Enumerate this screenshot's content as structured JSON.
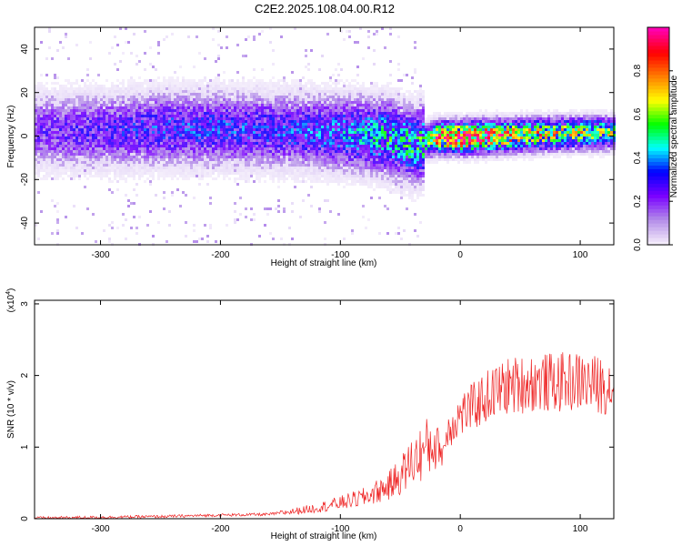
{
  "title": "C2E2.2025.108.04.00.R12",
  "chart_data": [
    {
      "type": "heatmap",
      "xlabel": "Height of straight line (km)",
      "ylabel": "Frequency (Hz)",
      "xlim": [
        -355,
        128
      ],
      "ylim": [
        -50,
        50
      ],
      "xticks": [
        -300,
        -200,
        -100,
        0,
        100
      ],
      "yticks": [
        -40,
        -20,
        0,
        20,
        40
      ],
      "colorbar": {
        "label": "Normalized spectral amplitude",
        "range": [
          0,
          1
        ],
        "ticks": [
          "0.0",
          "0.2",
          "0.4",
          "0.6",
          "0.8"
        ],
        "colors": [
          "#f4ecfb",
          "#b28be8",
          "#7a00ff",
          "#0000ff",
          "#00ffff",
          "#00ff00",
          "#ffff00",
          "#ff8000",
          "#ff0000",
          "#ff00b0"
        ]
      },
      "ridge": {
        "x": [
          -355,
          -300,
          -250,
          -200,
          -150,
          -100,
          -60,
          -40,
          -30,
          -20,
          0,
          50,
          100,
          128
        ],
        "center_hz": [
          3,
          3,
          4,
          4,
          3,
          2,
          0,
          -4,
          -2,
          0,
          0,
          1,
          2,
          2
        ],
        "amplitude": [
          0.22,
          0.25,
          0.3,
          0.3,
          0.3,
          0.35,
          0.45,
          0.45,
          0.5,
          0.85,
          0.95,
          0.7,
          0.6,
          0.55
        ]
      }
    },
    {
      "type": "line",
      "xlabel": "Height of straight line (km)",
      "ylabel": "SNR (10 * v/v)",
      "y_multiplier": "(x10",
      "y_multiplier_exp": "4",
      "xlim": [
        -355,
        128
      ],
      "ylim": [
        0,
        3.05
      ],
      "xticks": [
        -300,
        -200,
        -100,
        0,
        100
      ],
      "yticks": [
        0,
        1,
        2,
        3
      ],
      "color": "#ee2222",
      "series": [
        {
          "x": [
            -355,
            -300,
            -250,
            -200,
            -160,
            -140,
            -120,
            -100,
            -80,
            -60,
            -50,
            -40,
            -30,
            -20,
            -15,
            -10,
            0,
            10,
            20,
            30,
            40,
            60,
            80,
            100,
            110,
            128
          ],
          "values": [
            0.01,
            0.02,
            0.03,
            0.05,
            0.06,
            0.1,
            0.15,
            0.22,
            0.3,
            0.45,
            0.6,
            0.8,
            0.95,
            1.1,
            0.9,
            1.25,
            1.45,
            1.55,
            1.68,
            1.78,
            1.85,
            1.9,
            1.9,
            1.92,
            1.88,
            1.85
          ]
        }
      ]
    }
  ]
}
